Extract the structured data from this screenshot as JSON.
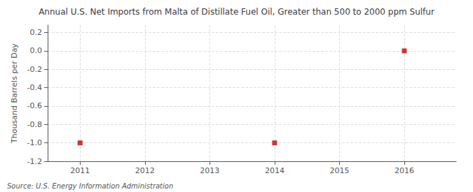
{
  "chart_data": {
    "type": "scatter",
    "title": "Annual U.S. Net Imports from Malta of Distillate Fuel Oil, Greater than 500 to 2000 ppm Sulfur",
    "ylabel": "Thousand Barrels per Day",
    "source": "Source: U.S. Energy Information Administration",
    "x": [
      2011,
      2014,
      2016
    ],
    "values": [
      -1.0,
      -1.0,
      0.0
    ],
    "color": "#cc0000",
    "marker": "square",
    "xlim": [
      2010.5,
      2016.8
    ],
    "ylim": [
      -1.2,
      0.28
    ],
    "xticks": [
      2011,
      2012,
      2013,
      2014,
      2015,
      2016
    ],
    "yticks": [
      0.2,
      {
        "value": 0.0,
        "label": "0.0"
      },
      -0.2,
      -0.4,
      -0.6,
      -0.8,
      {
        "value": -1.0,
        "label": "-1.0"
      },
      -1.2
    ],
    "grid": true
  }
}
